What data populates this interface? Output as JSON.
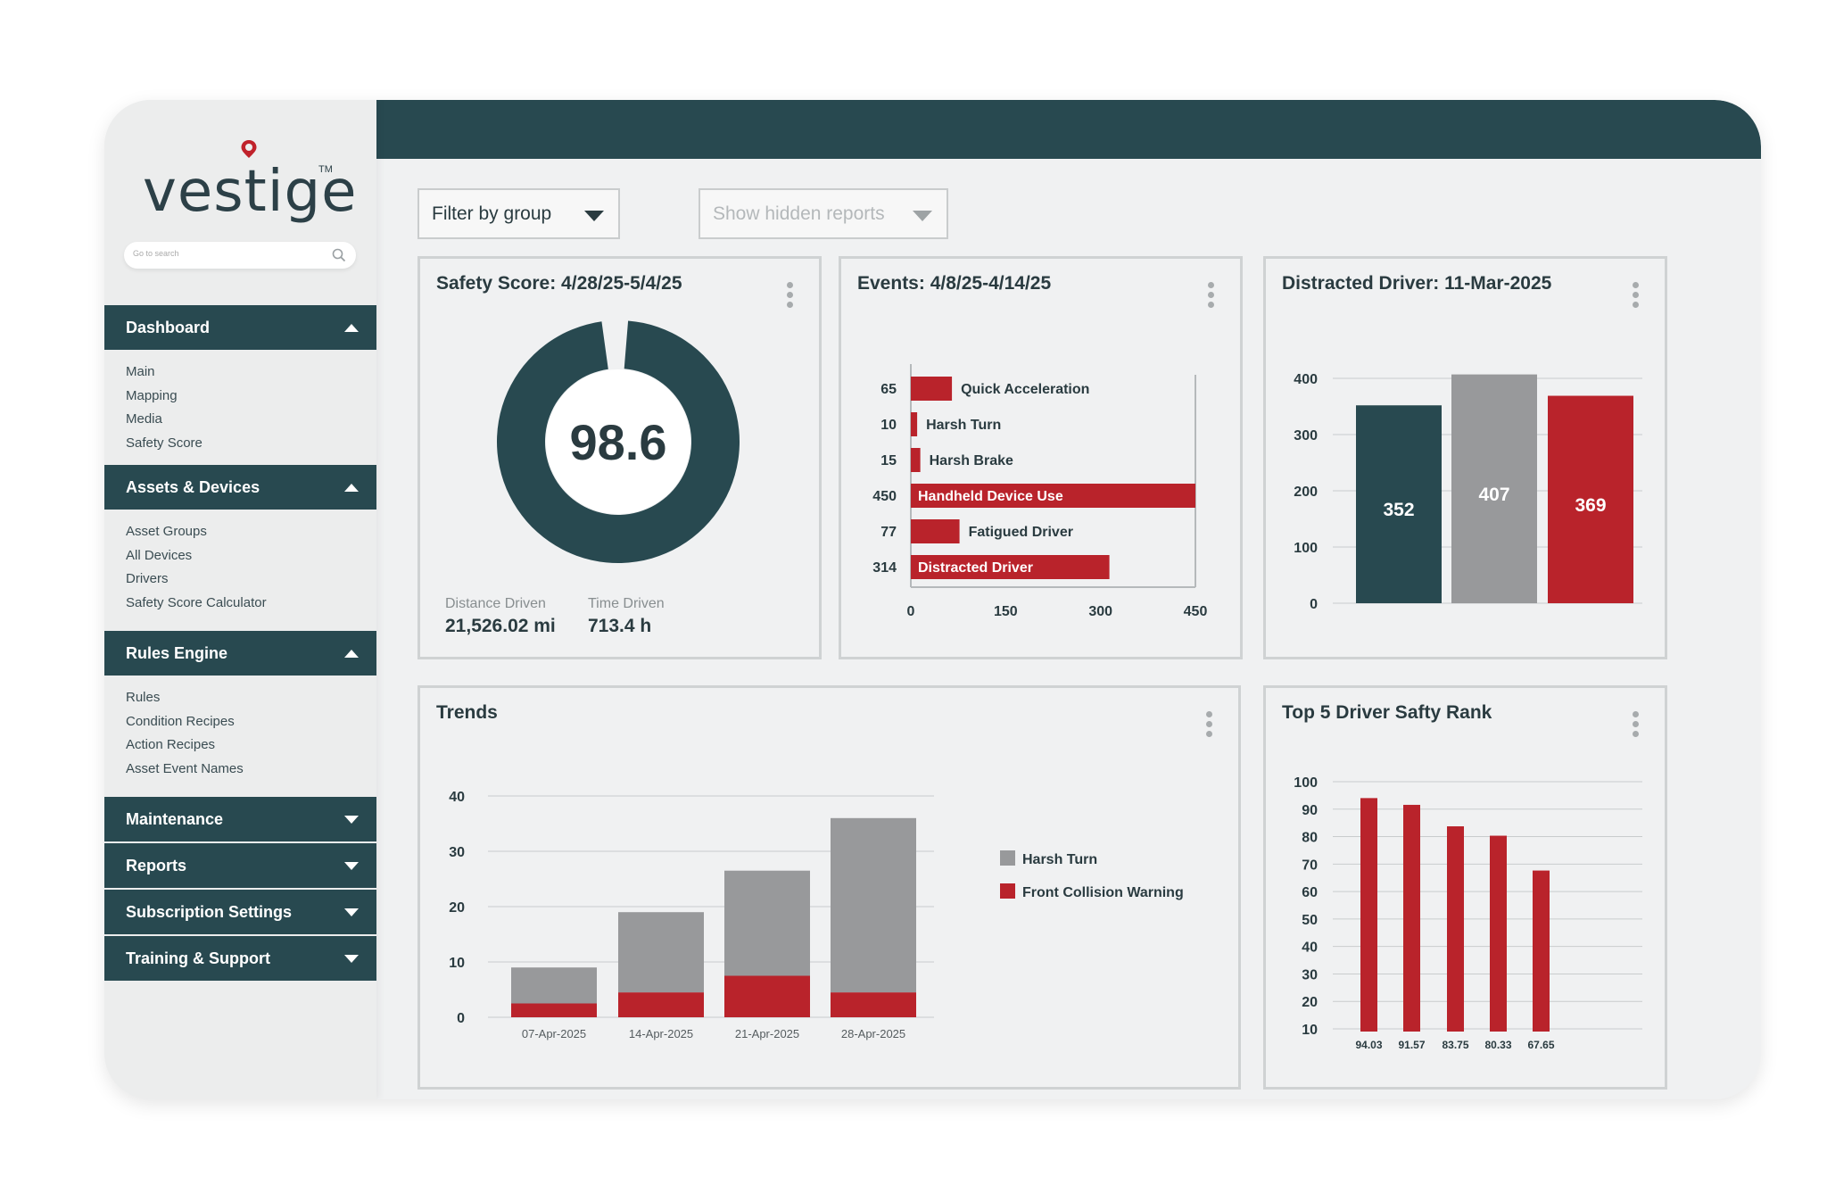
{
  "brand": {
    "name": "vestige",
    "tm": "TM",
    "primary": "#284950",
    "accent": "#b9232b",
    "gray": "#98999b"
  },
  "search": {
    "placeholder": "Go to search",
    "icon": "search-icon"
  },
  "sidebar": {
    "sections": [
      {
        "label": "Dashboard",
        "expanded": true,
        "items": [
          "Main",
          "Mapping",
          "Media",
          "Safety Score"
        ]
      },
      {
        "label": "Assets & Devices",
        "expanded": true,
        "items": [
          "Asset Groups",
          "All Devices",
          "Drivers",
          "Safety Score Calculator"
        ]
      },
      {
        "label": "Rules Engine",
        "expanded": true,
        "items": [
          "Rules",
          "Condition Recipes",
          "Action Recipes",
          "Asset Event Names"
        ]
      },
      {
        "label": "Maintenance",
        "expanded": false,
        "items": []
      },
      {
        "label": "Reports",
        "expanded": false,
        "items": []
      },
      {
        "label": "Subscription Settings",
        "expanded": false,
        "items": []
      },
      {
        "label": "Training & Support",
        "expanded": false,
        "items": []
      }
    ]
  },
  "filters": {
    "group": "Filter by group",
    "hidden": "Show hidden reports"
  },
  "safety": {
    "title": "Safety Score: 4/28/25-5/4/25",
    "score": "98.6",
    "score_fraction": 0.986,
    "distance_label": "Distance Driven",
    "distance_value": "21,526.02 mi",
    "time_label": "Time Driven",
    "time_value": "713.4 h"
  },
  "events": {
    "title": "Events: 4/8/25-4/14/25",
    "chart_data": {
      "type": "bar",
      "orientation": "horizontal",
      "categories": [
        "Quick Acceleration",
        "Harsh Turn",
        "Harsh Brake",
        "Handheld Device Use",
        "Fatigued Driver",
        "Distracted Driver"
      ],
      "values": [
        65,
        10,
        15,
        450,
        77,
        314
      ],
      "value_labels": [
        "65",
        "10",
        "15",
        "450",
        "77",
        "314"
      ],
      "xlim": [
        0,
        450
      ],
      "x_ticks": [
        "0",
        "150",
        "300",
        "450"
      ],
      "color": "#b9232b"
    }
  },
  "distracted": {
    "title": "Distracted Driver: 11-Mar-2025",
    "chart_data": {
      "type": "bar",
      "categories": [
        "",
        "",
        ""
      ],
      "values": [
        352,
        407,
        369
      ],
      "value_labels": [
        "352",
        "407",
        "369"
      ],
      "colors": [
        "#284950",
        "#98999b",
        "#b9232b"
      ],
      "ylim": [
        0,
        400
      ],
      "y_ticks": [
        "0",
        "100",
        "200",
        "300",
        "400"
      ]
    }
  },
  "trends": {
    "title": "Trends",
    "chart_data": {
      "type": "bar",
      "stacked": true,
      "categories": [
        "07-Apr-2025",
        "14-Apr-2025",
        "21-Apr-2025",
        "28-Apr-2025"
      ],
      "series": [
        {
          "name": "Front Collision Warning",
          "color": "#b9232b",
          "values": [
            2.5,
            4.5,
            7.5,
            4.5
          ]
        },
        {
          "name": "Harsh Turn",
          "color": "#98999b",
          "values": [
            6.5,
            14.5,
            19,
            31.5
          ]
        }
      ],
      "ylim": [
        0,
        40
      ],
      "y_ticks": [
        "0",
        "10",
        "20",
        "30",
        "40"
      ]
    }
  },
  "rank": {
    "title": "Top 5 Driver Safty Rank",
    "chart_data": {
      "type": "bar",
      "categories": [
        "94.03",
        "91.57",
        "83.75",
        "80.33",
        "67.65"
      ],
      "values": [
        94.03,
        91.57,
        83.75,
        80.33,
        67.65
      ],
      "color": "#b9232b",
      "ylim": [
        10,
        100
      ],
      "y_ticks": [
        "10",
        "20",
        "30",
        "40",
        "50",
        "60",
        "70",
        "80",
        "90",
        "100"
      ]
    }
  }
}
